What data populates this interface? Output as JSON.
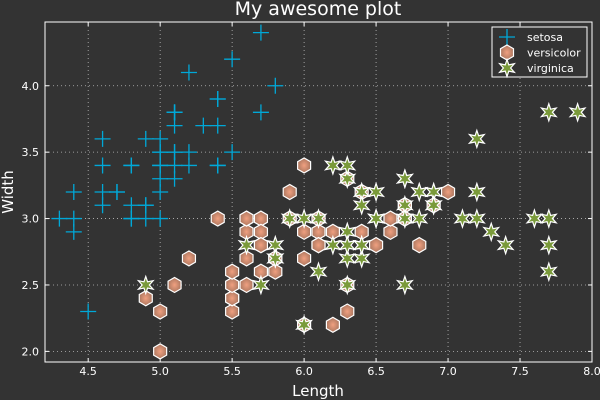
{
  "chart_data": {
    "type": "scatter",
    "title": "My awesome plot",
    "xlabel": "Length",
    "ylabel": "Width",
    "xlim": [
      4.2,
      8.0
    ],
    "ylim": [
      1.92,
      4.48
    ],
    "xticks": [
      4.5,
      5.0,
      5.5,
      6.0,
      6.5,
      7.0,
      7.5,
      8.0
    ],
    "yticks": [
      2.0,
      2.5,
      3.0,
      3.5,
      4.0
    ],
    "xtick_labels": [
      "4.5",
      "5.0",
      "5.5",
      "6.0",
      "6.5",
      "7.0",
      "7.5",
      "8.0"
    ],
    "ytick_labels": [
      "2.0",
      "2.5",
      "3.0",
      "3.5",
      "4.0"
    ],
    "grid": true,
    "legend_position": "top-right",
    "series": [
      {
        "name": "setosa",
        "marker": "cross",
        "color": "#00a8d8",
        "points": [
          [
            5.1,
            3.5
          ],
          [
            4.9,
            3.0
          ],
          [
            4.7,
            3.2
          ],
          [
            4.6,
            3.1
          ],
          [
            5.0,
            3.6
          ],
          [
            5.4,
            3.9
          ],
          [
            4.6,
            3.4
          ],
          [
            5.0,
            3.4
          ],
          [
            4.4,
            2.9
          ],
          [
            4.9,
            3.1
          ],
          [
            5.4,
            3.7
          ],
          [
            4.8,
            3.4
          ],
          [
            4.8,
            3.0
          ],
          [
            4.3,
            3.0
          ],
          [
            5.8,
            4.0
          ],
          [
            5.7,
            4.4
          ],
          [
            5.4,
            3.9
          ],
          [
            5.1,
            3.5
          ],
          [
            5.7,
            3.8
          ],
          [
            5.1,
            3.8
          ],
          [
            5.4,
            3.4
          ],
          [
            5.1,
            3.7
          ],
          [
            4.6,
            3.6
          ],
          [
            5.1,
            3.3
          ],
          [
            4.8,
            3.4
          ],
          [
            5.0,
            3.0
          ],
          [
            5.0,
            3.4
          ],
          [
            5.2,
            3.5
          ],
          [
            5.2,
            3.4
          ],
          [
            4.7,
            3.2
          ],
          [
            4.8,
            3.1
          ],
          [
            5.4,
            3.4
          ],
          [
            5.2,
            4.1
          ],
          [
            5.5,
            4.2
          ],
          [
            4.9,
            3.1
          ],
          [
            5.0,
            3.2
          ],
          [
            5.5,
            3.5
          ],
          [
            4.9,
            3.6
          ],
          [
            4.4,
            3.0
          ],
          [
            5.1,
            3.4
          ],
          [
            5.0,
            3.5
          ],
          [
            4.5,
            2.3
          ],
          [
            4.4,
            3.2
          ],
          [
            5.0,
            3.5
          ],
          [
            5.1,
            3.8
          ],
          [
            4.8,
            3.0
          ],
          [
            5.1,
            3.8
          ],
          [
            4.6,
            3.2
          ],
          [
            5.3,
            3.7
          ],
          [
            5.0,
            3.3
          ]
        ]
      },
      {
        "name": "versicolor",
        "marker": "hexagon",
        "color": "#a0705a",
        "points": [
          [
            7.0,
            3.2
          ],
          [
            6.4,
            3.2
          ],
          [
            6.9,
            3.1
          ],
          [
            5.5,
            2.3
          ],
          [
            6.5,
            2.8
          ],
          [
            5.7,
            2.8
          ],
          [
            6.3,
            3.3
          ],
          [
            4.9,
            2.4
          ],
          [
            6.6,
            2.9
          ],
          [
            5.2,
            2.7
          ],
          [
            5.0,
            2.0
          ],
          [
            5.9,
            3.0
          ],
          [
            6.0,
            2.2
          ],
          [
            6.1,
            2.9
          ],
          [
            5.6,
            2.9
          ],
          [
            6.7,
            3.1
          ],
          [
            5.6,
            3.0
          ],
          [
            5.8,
            2.7
          ],
          [
            6.2,
            2.2
          ],
          [
            5.6,
            2.5
          ],
          [
            5.9,
            3.2
          ],
          [
            6.1,
            2.8
          ],
          [
            6.3,
            2.5
          ],
          [
            6.1,
            2.8
          ],
          [
            6.4,
            2.9
          ],
          [
            6.6,
            3.0
          ],
          [
            6.8,
            2.8
          ],
          [
            6.7,
            3.0
          ],
          [
            6.0,
            2.9
          ],
          [
            5.7,
            2.6
          ],
          [
            5.5,
            2.4
          ],
          [
            5.5,
            2.4
          ],
          [
            5.8,
            2.7
          ],
          [
            6.0,
            2.7
          ],
          [
            5.4,
            3.0
          ],
          [
            6.0,
            3.4
          ],
          [
            6.7,
            3.1
          ],
          [
            6.3,
            2.3
          ],
          [
            5.6,
            3.0
          ],
          [
            5.5,
            2.5
          ],
          [
            5.5,
            2.6
          ],
          [
            6.1,
            3.0
          ],
          [
            5.8,
            2.6
          ],
          [
            5.0,
            2.3
          ],
          [
            5.6,
            2.7
          ],
          [
            5.7,
            3.0
          ],
          [
            5.7,
            2.9
          ],
          [
            6.2,
            2.9
          ],
          [
            5.1,
            2.5
          ],
          [
            5.7,
            2.8
          ]
        ]
      },
      {
        "name": "virginica",
        "marker": "star",
        "color": "#7a9a3a",
        "points": [
          [
            6.3,
            3.3
          ],
          [
            5.8,
            2.7
          ],
          [
            7.1,
            3.0
          ],
          [
            6.3,
            2.9
          ],
          [
            6.5,
            3.0
          ],
          [
            7.6,
            3.0
          ],
          [
            4.9,
            2.5
          ],
          [
            7.3,
            2.9
          ],
          [
            6.7,
            2.5
          ],
          [
            7.2,
            3.6
          ],
          [
            6.5,
            3.2
          ],
          [
            6.4,
            2.7
          ],
          [
            6.8,
            3.0
          ],
          [
            5.7,
            2.5
          ],
          [
            5.8,
            2.8
          ],
          [
            6.4,
            3.2
          ],
          [
            6.5,
            3.0
          ],
          [
            7.7,
            3.8
          ],
          [
            7.7,
            2.6
          ],
          [
            6.0,
            2.2
          ],
          [
            6.9,
            3.2
          ],
          [
            5.6,
            2.8
          ],
          [
            7.7,
            2.8
          ],
          [
            6.3,
            2.7
          ],
          [
            6.7,
            3.3
          ],
          [
            7.2,
            3.2
          ],
          [
            6.2,
            2.8
          ],
          [
            6.1,
            3.0
          ],
          [
            6.4,
            2.8
          ],
          [
            7.2,
            3.0
          ],
          [
            7.4,
            2.8
          ],
          [
            7.9,
            3.8
          ],
          [
            6.4,
            2.8
          ],
          [
            6.3,
            2.8
          ],
          [
            6.1,
            2.6
          ],
          [
            7.7,
            3.0
          ],
          [
            6.3,
            3.4
          ],
          [
            6.4,
            3.1
          ],
          [
            6.0,
            3.0
          ],
          [
            6.9,
            3.1
          ],
          [
            6.7,
            3.1
          ],
          [
            6.9,
            3.1
          ],
          [
            5.8,
            2.7
          ],
          [
            6.8,
            3.2
          ],
          [
            6.7,
            3.3
          ],
          [
            6.7,
            3.0
          ],
          [
            6.3,
            2.5
          ],
          [
            6.5,
            3.0
          ],
          [
            6.2,
            3.4
          ],
          [
            5.9,
            3.0
          ]
        ]
      }
    ]
  }
}
